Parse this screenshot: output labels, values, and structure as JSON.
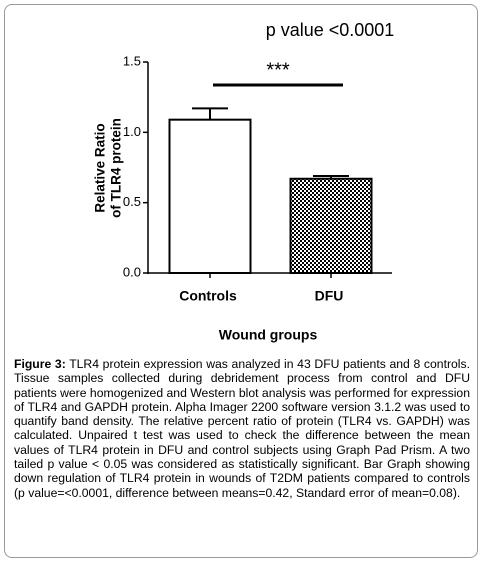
{
  "chart_data": {
    "type": "bar",
    "title": "p value <0.0001",
    "ylabel": [
      "Relative Ratio",
      "of TLR4 protein"
    ],
    "xlabel": "Wound groups",
    "categories": [
      "Controls",
      "DFU"
    ],
    "values": [
      1.09,
      0.67
    ],
    "errors": [
      0.08,
      0.02
    ],
    "bar_styles": [
      "plain",
      "checkered"
    ],
    "color": "#000000",
    "ylim": [
      0,
      1.5
    ],
    "yticks": [
      {
        "value": 0,
        "label": "0.0"
      },
      {
        "value": 0.5,
        "label": "0.5"
      },
      {
        "value": 1,
        "label": "1.0"
      },
      {
        "value": 1.5,
        "label": "1.5"
      }
    ],
    "annotations": [
      {
        "text": "***"
      }
    ]
  },
  "caption": {
    "label": "Figure 3:",
    "text": "TLR4 protein expression was analyzed in 43 DFU patients and 8 controls. Tissue samples collected during debridement process from control and DFU patients were homogenized and Western blot analysis was performed for expression of TLR4 and GAPDH protein. Alpha Imager 2200 software version 3.1.2 was used to quantify band density. The relative percent ratio of protein (TLR4 vs. GAPDH) was calculated.  Unpaired t test was used to check the difference between the mean values of TLR4 protein in DFU and control subjects using Graph Pad Prism. A two tailed p value < 0.05 was considered as statistically significant.  Bar Graph showing down regulation of TLR4 protein in wounds of T2DM patients compared to controls (p value=<0.0001, difference between means=0.42, Standard error of mean=0.08)."
  }
}
